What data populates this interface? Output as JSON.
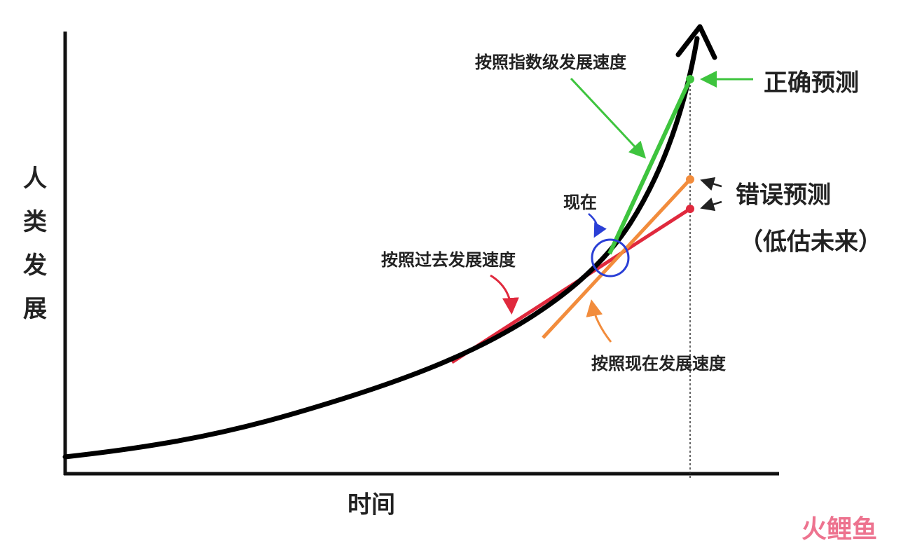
{
  "diagram": {
    "y_axis_label": "人类发展",
    "x_axis_label": "时间",
    "annotations": {
      "exponential": "按照指数级发展速度",
      "correct": "正确预测",
      "wrong": "错误预测",
      "underestimate": "（低估未来）",
      "now": "现在",
      "past_rate": "按照过去发展速度",
      "current_rate": "按照现在发展速度"
    }
  },
  "watermark": "火鲤鱼"
}
